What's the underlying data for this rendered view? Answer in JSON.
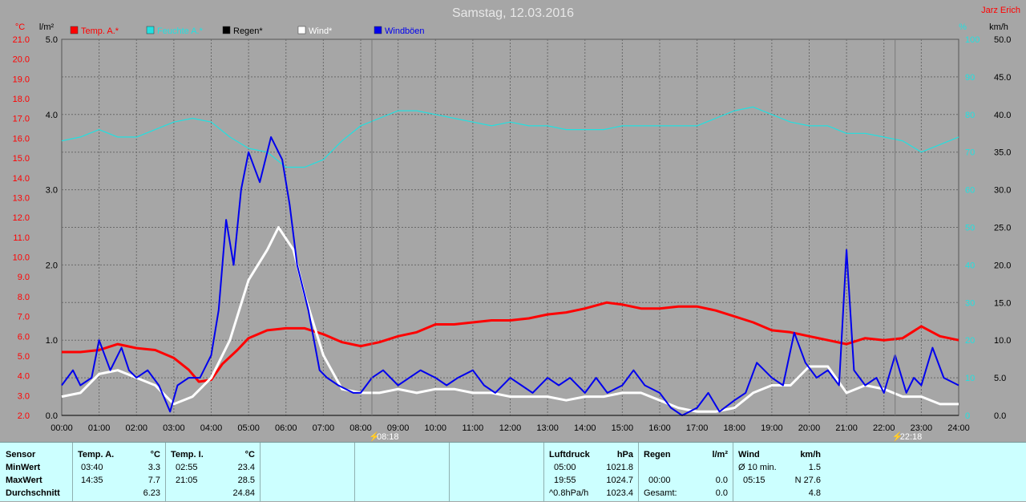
{
  "chart_data": {
    "type": "line",
    "title": "Samstag, 12.03.2016",
    "author": "Jarz Erich",
    "x_ticks": [
      "00:00",
      "01:00",
      "02:00",
      "03:00",
      "04:00",
      "05:00",
      "06:00",
      "07:00",
      "08:00",
      "09:00",
      "10:00",
      "11:00",
      "12:00",
      "13:00",
      "14:00",
      "15:00",
      "16:00",
      "17:00",
      "18:00",
      "19:00",
      "20:00",
      "21:00",
      "22:00",
      "23:00",
      "24:00"
    ],
    "axes": {
      "temp": {
        "unit": "°C",
        "min": 2.0,
        "max": 21.0,
        "ticks": [
          "21.0",
          "20.0",
          "19.0",
          "18.0",
          "17.0",
          "16.0",
          "15.0",
          "14.0",
          "13.0",
          "12.0",
          "11.0",
          "10.0",
          "9.0",
          "8.0",
          "7.0",
          "6.0",
          "5.0",
          "4.0",
          "3.0",
          "2.0"
        ],
        "color": "#ff0000"
      },
      "rain": {
        "unit": "l/m²",
        "min": 0.0,
        "max": 5.0,
        "ticks": [
          "5.0",
          "4.0",
          "3.0",
          "2.0",
          "1.0",
          "0.0"
        ],
        "color": "#000000"
      },
      "humidity": {
        "unit": "%",
        "min": 0,
        "max": 100,
        "ticks": [
          "100",
          "90",
          "80",
          "70",
          "60",
          "50",
          "40",
          "30",
          "20",
          "10",
          "0"
        ],
        "color": "#22e0e0"
      },
      "wind": {
        "unit": "km/h",
        "min": 0.0,
        "max": 50.0,
        "ticks": [
          "50.0",
          "45.0",
          "40.0",
          "35.0",
          "30.0",
          "25.0",
          "20.0",
          "15.0",
          "10.0",
          "5.0",
          "0.0"
        ],
        "color": "#000000"
      }
    },
    "legend": [
      {
        "name": "Temp. A.*",
        "color": "#ff0000"
      },
      {
        "name": "Feuchte A.*",
        "color": "#22e0e0"
      },
      {
        "name": "Regen*",
        "color": "#000000"
      },
      {
        "name": "Wind*",
        "color": "#ffffff"
      },
      {
        "name": "Windböen",
        "color": "#0000ee"
      }
    ],
    "markers": [
      {
        "hour": 8.3,
        "label": "08:18"
      },
      {
        "hour": 22.3,
        "label": "22:18"
      }
    ],
    "series": [
      {
        "name": "Temp. A.*",
        "axis": "temp",
        "color": "#ff0000",
        "points": [
          [
            0,
            5.2
          ],
          [
            0.5,
            5.2
          ],
          [
            1,
            5.3
          ],
          [
            1.5,
            5.6
          ],
          [
            2,
            5.4
          ],
          [
            2.5,
            5.3
          ],
          [
            3,
            4.9
          ],
          [
            3.4,
            4.3
          ],
          [
            3.67,
            3.7
          ],
          [
            4,
            3.8
          ],
          [
            4.3,
            4.6
          ],
          [
            4.7,
            5.3
          ],
          [
            5,
            5.9
          ],
          [
            5.5,
            6.3
          ],
          [
            6,
            6.4
          ],
          [
            6.5,
            6.4
          ],
          [
            7,
            6.1
          ],
          [
            7.5,
            5.7
          ],
          [
            8,
            5.5
          ],
          [
            8.5,
            5.7
          ],
          [
            9,
            6.0
          ],
          [
            9.5,
            6.2
          ],
          [
            10,
            6.6
          ],
          [
            10.5,
            6.6
          ],
          [
            11,
            6.7
          ],
          [
            11.5,
            6.8
          ],
          [
            12,
            6.8
          ],
          [
            12.5,
            6.9
          ],
          [
            13,
            7.1
          ],
          [
            13.5,
            7.2
          ],
          [
            14,
            7.4
          ],
          [
            14.58,
            7.7
          ],
          [
            15,
            7.6
          ],
          [
            15.5,
            7.4
          ],
          [
            16,
            7.4
          ],
          [
            16.5,
            7.5
          ],
          [
            17,
            7.5
          ],
          [
            17.5,
            7.3
          ],
          [
            18,
            7.0
          ],
          [
            18.5,
            6.7
          ],
          [
            19,
            6.3
          ],
          [
            19.5,
            6.2
          ],
          [
            20,
            6.0
          ],
          [
            20.5,
            5.8
          ],
          [
            21,
            5.6
          ],
          [
            21.5,
            5.9
          ],
          [
            22,
            5.8
          ],
          [
            22.5,
            5.9
          ],
          [
            23,
            6.5
          ],
          [
            23.5,
            6.0
          ],
          [
            24,
            5.8
          ]
        ]
      },
      {
        "name": "Feuchte A.*",
        "axis": "humidity",
        "color": "#22e0e0",
        "points": [
          [
            0,
            73
          ],
          [
            0.5,
            74
          ],
          [
            1,
            76
          ],
          [
            1.5,
            74
          ],
          [
            2,
            74
          ],
          [
            2.5,
            76
          ],
          [
            3,
            78
          ],
          [
            3.5,
            79
          ],
          [
            4,
            78
          ],
          [
            4.5,
            74
          ],
          [
            5,
            71
          ],
          [
            5.5,
            70
          ],
          [
            6,
            66
          ],
          [
            6.5,
            66
          ],
          [
            7,
            68
          ],
          [
            7.5,
            73
          ],
          [
            8,
            77
          ],
          [
            8.5,
            79
          ],
          [
            9,
            81
          ],
          [
            9.5,
            81
          ],
          [
            10,
            80
          ],
          [
            10.5,
            79
          ],
          [
            11,
            78
          ],
          [
            11.5,
            77
          ],
          [
            12,
            78
          ],
          [
            12.5,
            77
          ],
          [
            13,
            77
          ],
          [
            13.5,
            76
          ],
          [
            14,
            76
          ],
          [
            14.5,
            76
          ],
          [
            15,
            77
          ],
          [
            15.5,
            77
          ],
          [
            16,
            77
          ],
          [
            16.5,
            77
          ],
          [
            17,
            77
          ],
          [
            17.5,
            79
          ],
          [
            18,
            81
          ],
          [
            18.5,
            82
          ],
          [
            19,
            80
          ],
          [
            19.5,
            78
          ],
          [
            20,
            77
          ],
          [
            20.5,
            77
          ],
          [
            21,
            75
          ],
          [
            21.5,
            75
          ],
          [
            22,
            74
          ],
          [
            22.5,
            73
          ],
          [
            23,
            70
          ],
          [
            23.5,
            72
          ],
          [
            24,
            74
          ]
        ]
      },
      {
        "name": "Wind*",
        "axis": "wind",
        "color": "#ffffff",
        "points": [
          [
            0,
            2.5
          ],
          [
            0.5,
            3
          ],
          [
            1,
            5.5
          ],
          [
            1.5,
            6
          ],
          [
            2,
            5
          ],
          [
            2.5,
            4
          ],
          [
            3,
            1.5
          ],
          [
            3.5,
            2.5
          ],
          [
            3.8,
            4
          ],
          [
            4,
            5
          ],
          [
            4.5,
            10
          ],
          [
            5,
            18
          ],
          [
            5.5,
            22
          ],
          [
            5.8,
            25
          ],
          [
            6.2,
            22
          ],
          [
            6.5,
            16
          ],
          [
            7,
            8
          ],
          [
            7.5,
            3.5
          ],
          [
            8,
            3
          ],
          [
            8.5,
            3
          ],
          [
            9,
            3.5
          ],
          [
            9.5,
            3
          ],
          [
            10,
            3.5
          ],
          [
            10.5,
            3.5
          ],
          [
            11,
            3
          ],
          [
            11.5,
            3
          ],
          [
            12,
            2.5
          ],
          [
            12.5,
            2.5
          ],
          [
            13,
            2.5
          ],
          [
            13.5,
            2
          ],
          [
            14,
            2.5
          ],
          [
            14.5,
            2.5
          ],
          [
            15,
            3
          ],
          [
            15.5,
            3
          ],
          [
            16,
            2
          ],
          [
            16.5,
            1
          ],
          [
            17,
            0.5
          ],
          [
            17.5,
            0.5
          ],
          [
            18,
            1
          ],
          [
            18.5,
            3
          ],
          [
            19,
            4
          ],
          [
            19.5,
            4
          ],
          [
            20,
            6.5
          ],
          [
            20.5,
            6.5
          ],
          [
            21,
            3
          ],
          [
            21.5,
            4
          ],
          [
            22,
            3.5
          ],
          [
            22.5,
            2.5
          ],
          [
            23,
            2.5
          ],
          [
            23.5,
            1.5
          ],
          [
            24,
            1.5
          ]
        ]
      },
      {
        "name": "Windböen",
        "axis": "wind",
        "color": "#0000ee",
        "points": [
          [
            0,
            4
          ],
          [
            0.3,
            6
          ],
          [
            0.5,
            4
          ],
          [
            0.8,
            5
          ],
          [
            1,
            10
          ],
          [
            1.3,
            6
          ],
          [
            1.6,
            9
          ],
          [
            1.8,
            6
          ],
          [
            2,
            5
          ],
          [
            2.3,
            6
          ],
          [
            2.6,
            4
          ],
          [
            2.9,
            0.5
          ],
          [
            3.1,
            4
          ],
          [
            3.4,
            5
          ],
          [
            3.7,
            5
          ],
          [
            4,
            8
          ],
          [
            4.2,
            14
          ],
          [
            4.4,
            26
          ],
          [
            4.6,
            20
          ],
          [
            4.8,
            30
          ],
          [
            5,
            35
          ],
          [
            5.3,
            31
          ],
          [
            5.6,
            37
          ],
          [
            5.9,
            34
          ],
          [
            6.1,
            28
          ],
          [
            6.3,
            20
          ],
          [
            6.6,
            14
          ],
          [
            6.9,
            6
          ],
          [
            7.1,
            5
          ],
          [
            7.4,
            4
          ],
          [
            7.8,
            3
          ],
          [
            8,
            3
          ],
          [
            8.3,
            5
          ],
          [
            8.6,
            6
          ],
          [
            9,
            4
          ],
          [
            9.3,
            5
          ],
          [
            9.6,
            6
          ],
          [
            10,
            5
          ],
          [
            10.3,
            4
          ],
          [
            10.6,
            5
          ],
          [
            11,
            6
          ],
          [
            11.3,
            4
          ],
          [
            11.6,
            3
          ],
          [
            12,
            5
          ],
          [
            12.3,
            4
          ],
          [
            12.6,
            3
          ],
          [
            13,
            5
          ],
          [
            13.3,
            4
          ],
          [
            13.6,
            5
          ],
          [
            14,
            3
          ],
          [
            14.3,
            5
          ],
          [
            14.6,
            3
          ],
          [
            15,
            4
          ],
          [
            15.3,
            6
          ],
          [
            15.6,
            4
          ],
          [
            16,
            3
          ],
          [
            16.3,
            1
          ],
          [
            16.6,
            0
          ],
          [
            17,
            1
          ],
          [
            17.3,
            3
          ],
          [
            17.6,
            0.5
          ],
          [
            18,
            2
          ],
          [
            18.3,
            3
          ],
          [
            18.6,
            7
          ],
          [
            19,
            5
          ],
          [
            19.3,
            4
          ],
          [
            19.6,
            11
          ],
          [
            19.9,
            7
          ],
          [
            20.2,
            5
          ],
          [
            20.5,
            6
          ],
          [
            20.8,
            4
          ],
          [
            21,
            22
          ],
          [
            21.2,
            6
          ],
          [
            21.5,
            4
          ],
          [
            21.8,
            5
          ],
          [
            22,
            3
          ],
          [
            22.3,
            8
          ],
          [
            22.6,
            3
          ],
          [
            22.8,
            5
          ],
          [
            23,
            4
          ],
          [
            23.3,
            9
          ],
          [
            23.6,
            5
          ],
          [
            24,
            4
          ]
        ]
      },
      {
        "name": "Regen*",
        "axis": "rain",
        "color": "#000000",
        "points": [
          [
            0,
            0
          ],
          [
            24,
            0
          ]
        ]
      }
    ]
  },
  "stats": {
    "sensor": {
      "header": "Sensor",
      "rows": [
        "MinWert",
        "MaxWert",
        "Durchschnitt"
      ]
    },
    "temp_a": {
      "header": "Temp. A.",
      "unit": "°C",
      "rows": [
        [
          "03:40",
          "3.3"
        ],
        [
          "14:35",
          "7.7"
        ],
        [
          "",
          "6.23"
        ]
      ]
    },
    "temp_i": {
      "header": "Temp. I.",
      "unit": "°C",
      "rows": [
        [
          "02:55",
          "23.4"
        ],
        [
          "21:05",
          "28.5"
        ],
        [
          "",
          "24.84"
        ]
      ]
    },
    "pressure": {
      "header": "Luftdruck",
      "unit": "hPa",
      "rows": [
        [
          "05:00",
          "1021.8"
        ],
        [
          "19:55",
          "1024.7"
        ],
        [
          "^0.8hPa/h",
          "1023.4"
        ]
      ]
    },
    "rain": {
      "header": "Regen",
      "unit": "l/m²",
      "rows": [
        [
          "",
          ""
        ],
        [
          "00:00",
          "0.0"
        ],
        [
          "Gesamt:",
          "0.0"
        ]
      ]
    },
    "wind": {
      "header": "Wind",
      "unit": "km/h",
      "rows": [
        [
          "Ø 10 min.",
          "1.5"
        ],
        [
          "05:15",
          "N 27.6"
        ],
        [
          "",
          "4.8"
        ]
      ]
    }
  }
}
